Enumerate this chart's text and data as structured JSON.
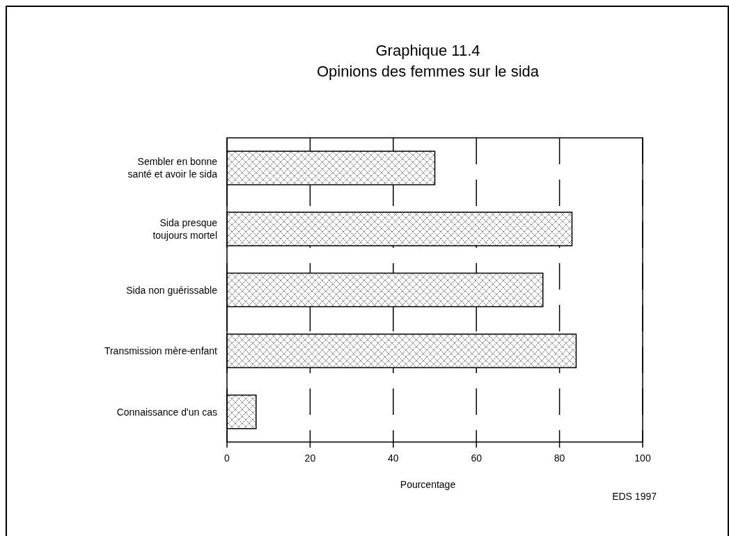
{
  "chart_data": {
    "type": "bar",
    "orientation": "horizontal",
    "title": "Graphique 11.4\nOpinions des femmes sur le sida",
    "xlabel": "Pourcentage",
    "categories": [
      "Sembler en bonne\nsanté et avoir le sida",
      "Sida presque\ntoujours mortel",
      "Sida non guérissable",
      "Transmission mère-enfant",
      "Connaissance d'un cas"
    ],
    "values": [
      50,
      83,
      76,
      84,
      7
    ],
    "color": "#000000",
    "xlim": [
      0,
      100
    ],
    "xticks": [
      0,
      20,
      40,
      60,
      80,
      100
    ],
    "grid": "x",
    "line_style": "dashed",
    "annotations": [
      "EDS 1997"
    ]
  }
}
